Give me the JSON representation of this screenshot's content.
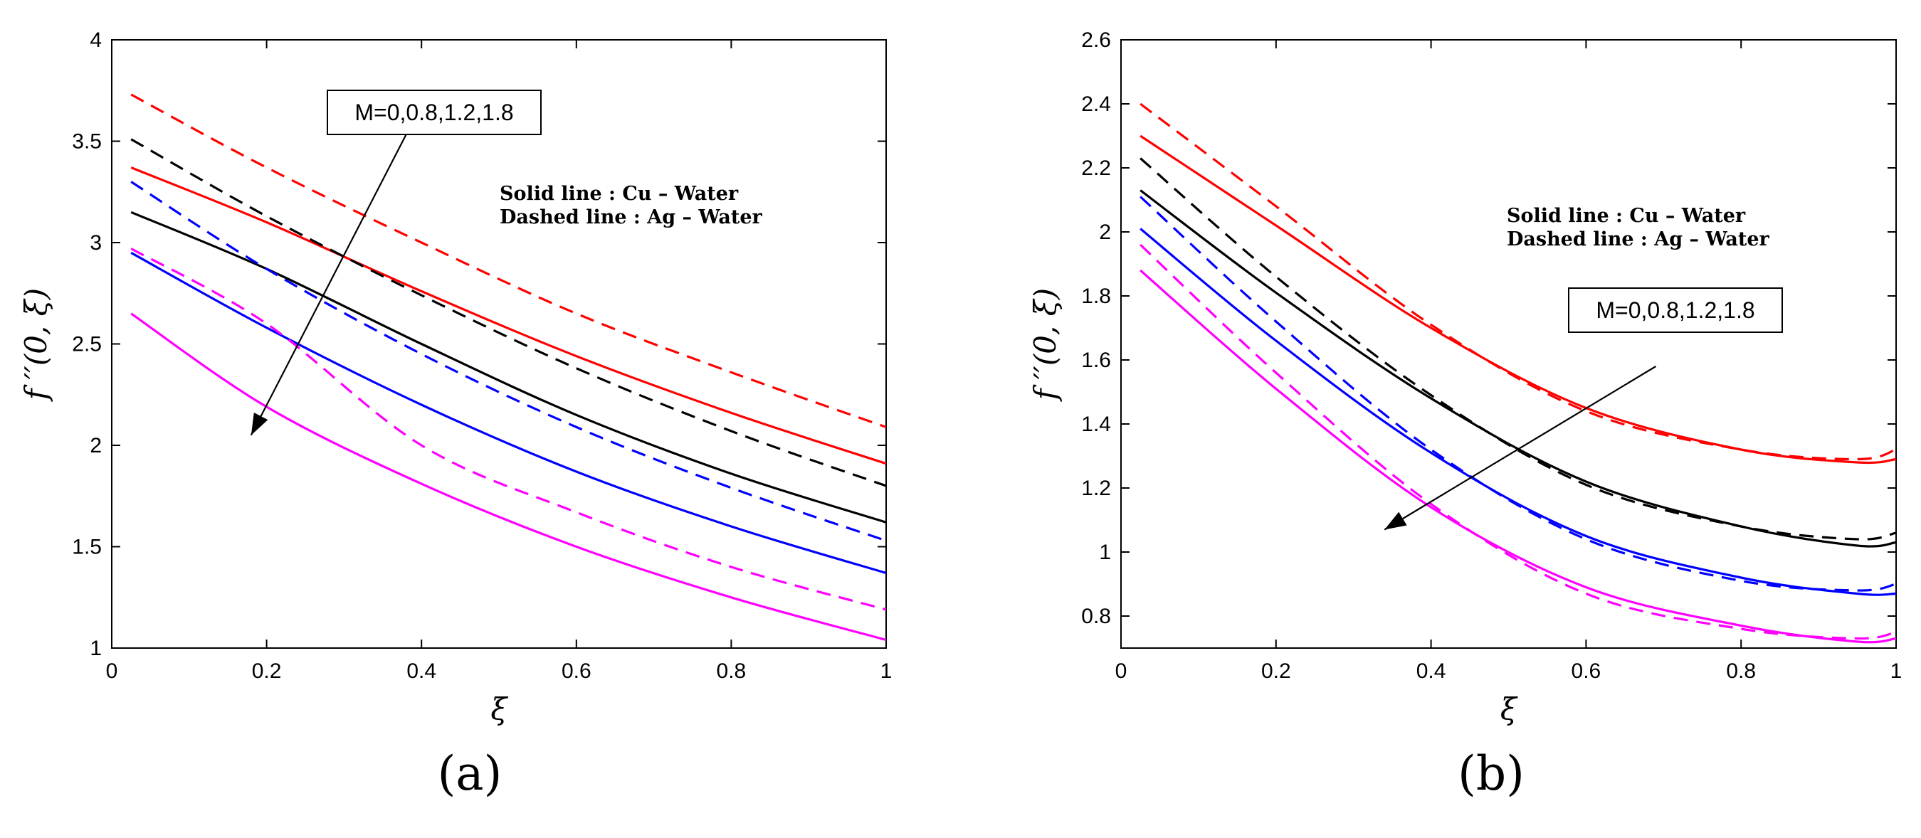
{
  "chart_data": [
    {
      "type": "line",
      "panel_label": "(a)",
      "xlabel": "ξ",
      "ylabel": "f ′′(0, ξ)",
      "xlim": [
        0,
        1
      ],
      "ylim": [
        1,
        4
      ],
      "xticks": [
        "0",
        "0.2",
        "0.4",
        "0.6",
        "0.8",
        "1"
      ],
      "yticks": [
        "1",
        "1.5",
        "2",
        "2.5",
        "3",
        "3.5",
        "4"
      ],
      "legend": [
        "Solid line : Cu – Water",
        "Dashed line : Ag – Water"
      ],
      "annotation": "M=0,0.8,1.2,1.8",
      "arrow": {
        "from": [
          0.4,
          3.68
        ],
        "to": [
          0.18,
          2.05
        ]
      },
      "x": [
        0.025,
        0.2,
        0.4,
        0.6,
        0.8,
        1.0
      ],
      "series": [
        {
          "name": "Cu M=0",
          "color": "#ff0000",
          "style": "solid",
          "values": [
            3.37,
            3.1,
            2.76,
            2.44,
            2.16,
            1.91
          ]
        },
        {
          "name": "Cu M=0.8",
          "color": "#000000",
          "style": "solid",
          "values": [
            3.15,
            2.87,
            2.5,
            2.15,
            1.86,
            1.62
          ]
        },
        {
          "name": "Cu M=1.2",
          "color": "#0000ff",
          "style": "solid",
          "values": [
            2.95,
            2.58,
            2.2,
            1.87,
            1.6,
            1.37
          ]
        },
        {
          "name": "Cu M=1.8",
          "color": "#ff00ff",
          "style": "solid",
          "values": [
            2.65,
            2.19,
            1.81,
            1.5,
            1.25,
            1.04
          ]
        },
        {
          "name": "Ag M=0",
          "color": "#ff0000",
          "style": "dashed",
          "values": [
            3.73,
            3.37,
            3.0,
            2.65,
            2.36,
            2.09
          ]
        },
        {
          "name": "Ag M=0.8",
          "color": "#000000",
          "style": "dashed",
          "values": [
            3.51,
            3.13,
            2.74,
            2.38,
            2.07,
            1.8
          ]
        },
        {
          "name": "Ag M=1.2",
          "color": "#0000ff",
          "style": "dashed",
          "values": [
            3.3,
            2.87,
            2.45,
            2.09,
            1.79,
            1.53
          ]
        },
        {
          "name": "Ag M=1.8",
          "color": "#ff00ff",
          "style": "dashed",
          "values": [
            2.97,
            2.6,
            2.0,
            1.67,
            1.4,
            1.19
          ]
        }
      ]
    },
    {
      "type": "line",
      "panel_label": "(b)",
      "xlabel": "ξ",
      "ylabel": "f ′′(0, ξ)",
      "xlim": [
        0,
        1
      ],
      "ylim": [
        0.7,
        2.6
      ],
      "xticks": [
        "0",
        "0.2",
        "0.4",
        "0.6",
        "0.8",
        "1"
      ],
      "yticks": [
        "0.8",
        "1",
        "1.2",
        "1.4",
        "1.6",
        "1.8",
        "2",
        "2.2",
        "2.4",
        "2.6"
      ],
      "legend": [
        "Solid line : Cu – Water",
        "Dashed line : Ag – Water"
      ],
      "annotation": "M=0,0.8,1.2,1.8",
      "arrow": {
        "from": [
          0.69,
          1.58
        ],
        "to": [
          0.34,
          1.07
        ]
      },
      "x": [
        0.025,
        0.2,
        0.4,
        0.6,
        0.8,
        0.95,
        1.0
      ],
      "series": [
        {
          "name": "Cu M=0",
          "color": "#ff0000",
          "style": "solid",
          "values": [
            2.3,
            2.02,
            1.7,
            1.45,
            1.32,
            1.28,
            1.29
          ]
        },
        {
          "name": "Cu M=0.8",
          "color": "#000000",
          "style": "solid",
          "values": [
            2.13,
            1.81,
            1.48,
            1.22,
            1.08,
            1.02,
            1.03
          ]
        },
        {
          "name": "Cu M=1.2",
          "color": "#0000ff",
          "style": "solid",
          "values": [
            2.01,
            1.66,
            1.31,
            1.05,
            0.92,
            0.87,
            0.87
          ]
        },
        {
          "name": "Cu M=1.8",
          "color": "#ff00ff",
          "style": "solid",
          "values": [
            1.88,
            1.51,
            1.14,
            0.89,
            0.77,
            0.72,
            0.73
          ]
        },
        {
          "name": "Ag M=0",
          "color": "#ff0000",
          "style": "dashed",
          "values": [
            2.4,
            2.08,
            1.71,
            1.44,
            1.32,
            1.29,
            1.32
          ]
        },
        {
          "name": "Ag M=0.8",
          "color": "#000000",
          "style": "dashed",
          "values": [
            2.23,
            1.86,
            1.49,
            1.21,
            1.08,
            1.04,
            1.06
          ]
        },
        {
          "name": "Ag M=1.2",
          "color": "#0000ff",
          "style": "dashed",
          "values": [
            2.11,
            1.72,
            1.32,
            1.04,
            0.91,
            0.88,
            0.9
          ]
        },
        {
          "name": "Ag M=1.8",
          "color": "#ff00ff",
          "style": "dashed",
          "values": [
            1.96,
            1.56,
            1.15,
            0.87,
            0.76,
            0.73,
            0.75
          ]
        }
      ]
    }
  ]
}
